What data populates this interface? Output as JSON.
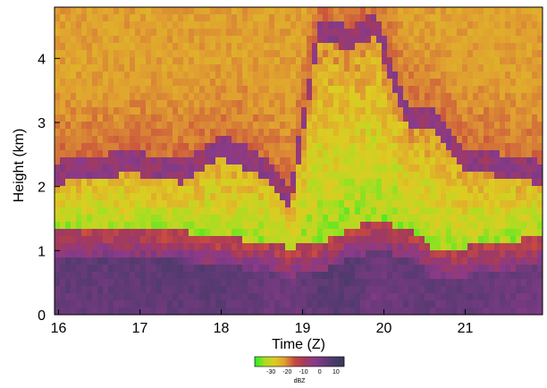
{
  "chart_data": {
    "type": "heatmap",
    "title": "",
    "xlabel": "Time (Z)",
    "ylabel": "Height  (km)",
    "x_ticks": [
      16,
      17,
      18,
      19,
      20,
      21
    ],
    "x_tick_labels": [
      "16",
      "17",
      "18",
      "19",
      "20",
      "21"
    ],
    "y_ticks": [
      0,
      1,
      2,
      3,
      4
    ],
    "y_tick_labels": [
      "0",
      "1",
      "2",
      "3",
      "4"
    ],
    "xlim": [
      15.95,
      21.95
    ],
    "ylim": [
      0,
      4.8
    ],
    "colorbar": {
      "label": "dBZ",
      "range": [
        -40,
        15
      ],
      "ticks": [
        -30,
        -20,
        -10,
        0,
        10
      ],
      "tick_labels": [
        "-30",
        "-20",
        "-10",
        "0",
        "10"
      ],
      "colors": [
        "#22ee22",
        "#aadd22",
        "#ddcc22",
        "#e0a030",
        "#c84a40",
        "#a53a5a",
        "#8a3a8a",
        "#6a3a7a",
        "#4a3a6a",
        "#3a3a5a"
      ]
    },
    "series": [
      {
        "times": [
          16.0,
          16.5,
          16.9,
          17.5,
          18.0,
          18.5,
          18.85,
          19.2,
          19.6,
          19.9,
          20.3,
          20.6,
          21.0,
          21.5,
          21.9
        ],
        "echo_top_km": [
          2.4,
          2.5,
          2.55,
          2.4,
          2.8,
          2.5,
          2.0,
          4.6,
          4.5,
          4.7,
          3.2,
          3.2,
          2.6,
          2.5,
          2.4
        ],
        "cloud_base_km": [
          1.22,
          1.2,
          1.2,
          1.15,
          1.05,
          1.0,
          0.9,
          0.95,
          1.2,
          1.3,
          1.2,
          0.9,
          0.9,
          1.0,
          1.05
        ],
        "low_layer_dbz": [
          5,
          5,
          5,
          6,
          6,
          4,
          2,
          6,
          7,
          2,
          5,
          4,
          5,
          3,
          2
        ]
      }
    ],
    "grid": false
  }
}
